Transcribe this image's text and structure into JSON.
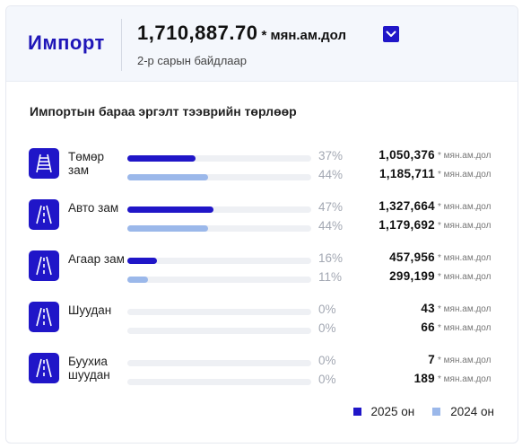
{
  "header": {
    "title": "Импорт",
    "total_value": "1,710,887.70",
    "total_unit": "* мян.ам.дол",
    "subtitle": "2-р сарын байдлаар"
  },
  "section_title": "Импортын бараа эргэлт тээврийн төрлөөр",
  "rows": [
    {
      "label": "Төмөр зам",
      "icon": "railway-icon",
      "pct_2025": 37,
      "pct_2025_text": "37%",
      "value_2025": "1,050,376",
      "pct_2024": 44,
      "pct_2024_text": "44%",
      "value_2024": "1,185,711"
    },
    {
      "label": "Авто зам",
      "icon": "road-icon",
      "pct_2025": 47,
      "pct_2025_text": "47%",
      "value_2025": "1,327,664",
      "pct_2024": 44,
      "pct_2024_text": "44%",
      "value_2024": "1,179,692"
    },
    {
      "label": "Агаар зам",
      "icon": "road-icon",
      "pct_2025": 16,
      "pct_2025_text": "16%",
      "value_2025": "457,956",
      "pct_2024": 11,
      "pct_2024_text": "11%",
      "value_2024": "299,199"
    },
    {
      "label": "Шуудан",
      "icon": "road-icon",
      "pct_2025": 0,
      "pct_2025_text": "0%",
      "value_2025": "43",
      "pct_2024": 0,
      "pct_2024_text": "0%",
      "value_2024": "66"
    },
    {
      "label": "Буухиа шуудан",
      "icon": "road-icon",
      "pct_2025": 0,
      "pct_2025_text": "0%",
      "value_2025": "7",
      "pct_2024": 0,
      "pct_2024_text": "0%",
      "value_2024": "189"
    }
  ],
  "unit_label": "* мян.ам.дол",
  "legend": [
    {
      "label": "2025 он",
      "color": "#2016c8"
    },
    {
      "label": "2024 он",
      "color": "#9bb8ea"
    }
  ],
  "colors": {
    "accent": "#2016c8",
    "secondary": "#9bb8ea",
    "track": "#eef0f4"
  }
}
